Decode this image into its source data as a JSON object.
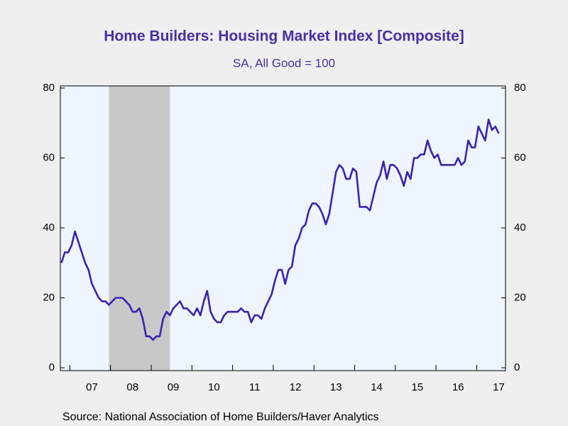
{
  "chart_data": {
    "type": "line",
    "title": "Home Builders: Housing Market Index  [Composite]",
    "subtitle": "SA, All Good = 100",
    "source": "Source:  National Association of Home Builders/Haver Analytics",
    "categories": [
      null,
      null,
      null,
      null,
      null,
      null,
      null,
      null,
      null,
      "07",
      null,
      null,
      null,
      null,
      null,
      null,
      null,
      null,
      null,
      null,
      null,
      "08",
      null,
      null,
      null,
      null,
      null,
      null,
      null,
      null,
      null,
      null,
      null,
      "09",
      null,
      null,
      null,
      null,
      null,
      null,
      null,
      null,
      null,
      null,
      null,
      "10",
      null,
      null,
      null,
      null,
      null,
      null,
      null,
      null,
      null,
      null,
      null,
      "11",
      null,
      null,
      null,
      null,
      null,
      null,
      null,
      null,
      null,
      null,
      null,
      "12",
      null,
      null,
      null,
      null,
      null,
      null,
      null,
      null,
      null,
      null,
      null,
      "13",
      null,
      null,
      null,
      null,
      null,
      null,
      null,
      null,
      null,
      null,
      null,
      "14",
      null,
      null,
      null,
      null,
      null,
      null,
      null,
      null,
      null,
      null,
      null,
      "15",
      null,
      null,
      null,
      null,
      null,
      null,
      null,
      null,
      null,
      null,
      null,
      "16",
      null,
      null,
      null,
      null,
      null,
      null,
      null,
      null,
      null,
      null,
      null,
      "17"
    ],
    "series": [
      {
        "name": "Housing Market Index",
        "color": "#3d22b0",
        "values": [
          30,
          33,
          33,
          35,
          39,
          36,
          33,
          30,
          28,
          24,
          22,
          20,
          19,
          19,
          18,
          19,
          20,
          20,
          20,
          19,
          18,
          16,
          16,
          17,
          14,
          9,
          9,
          8,
          9,
          9,
          14,
          16,
          15,
          17,
          18,
          19,
          17,
          17,
          16,
          15,
          17,
          15,
          19,
          22,
          16,
          14,
          13,
          13,
          15,
          16,
          16,
          16,
          16,
          17,
          16,
          16,
          13,
          15,
          15,
          14,
          17,
          19,
          21,
          25,
          28,
          28,
          24,
          28,
          29,
          35,
          37,
          40,
          41,
          45,
          47,
          47,
          46,
          44,
          41,
          44,
          50,
          56,
          58,
          57,
          54,
          54,
          57,
          56,
          46,
          46,
          46,
          45,
          49,
          53,
          55,
          59,
          54,
          58,
          58,
          57,
          55,
          52,
          56,
          54,
          60,
          60,
          61,
          61,
          65,
          62,
          60,
          61,
          58,
          58,
          58,
          58,
          58,
          60,
          58,
          59,
          65,
          63,
          63,
          69,
          67,
          65,
          71,
          68,
          69,
          67
        ]
      }
    ],
    "recession": [
      14,
      32
    ],
    "ylim": [
      0,
      80
    ],
    "yticks": [
      0,
      20,
      40,
      60,
      80
    ]
  }
}
